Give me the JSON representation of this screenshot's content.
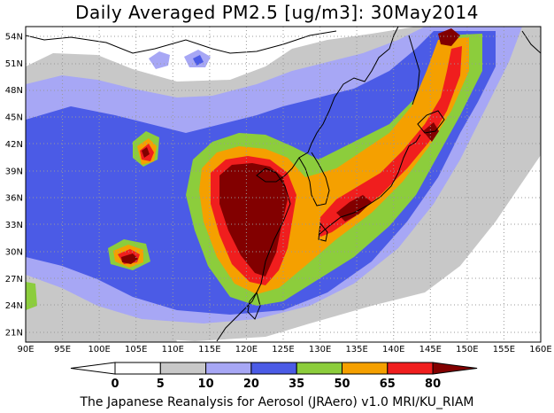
{
  "title": "Daily Averaged PM2.5 [ug/m3]: 30May2014",
  "footer": "The Japanese Reanalysis for Aerosol (JRAero) v1.0 MRI/KU_RIAM",
  "map": {
    "lon_labels": [
      "90E",
      "95E",
      "100E",
      "105E",
      "110E",
      "115E",
      "120E",
      "125E",
      "130E",
      "135E",
      "140E",
      "145E",
      "150E",
      "155E",
      "160E"
    ],
    "lat_labels": [
      "54N",
      "51N",
      "48N",
      "45N",
      "42N",
      "39N",
      "36N",
      "33N",
      "30N",
      "27N",
      "24N",
      "21N"
    ]
  },
  "colorbar": {
    "levels": [
      "0",
      "5",
      "10",
      "20",
      "35",
      "50",
      "65",
      "80"
    ],
    "colors": [
      "#ffffff",
      "#c8c8c8",
      "#a7a7f5",
      "#4b5be6",
      "#8ccd3c",
      "#f5a000",
      "#f01e1e",
      "#820000"
    ]
  },
  "colors": {
    "land_border": "#000000",
    "grid": "#999999"
  }
}
